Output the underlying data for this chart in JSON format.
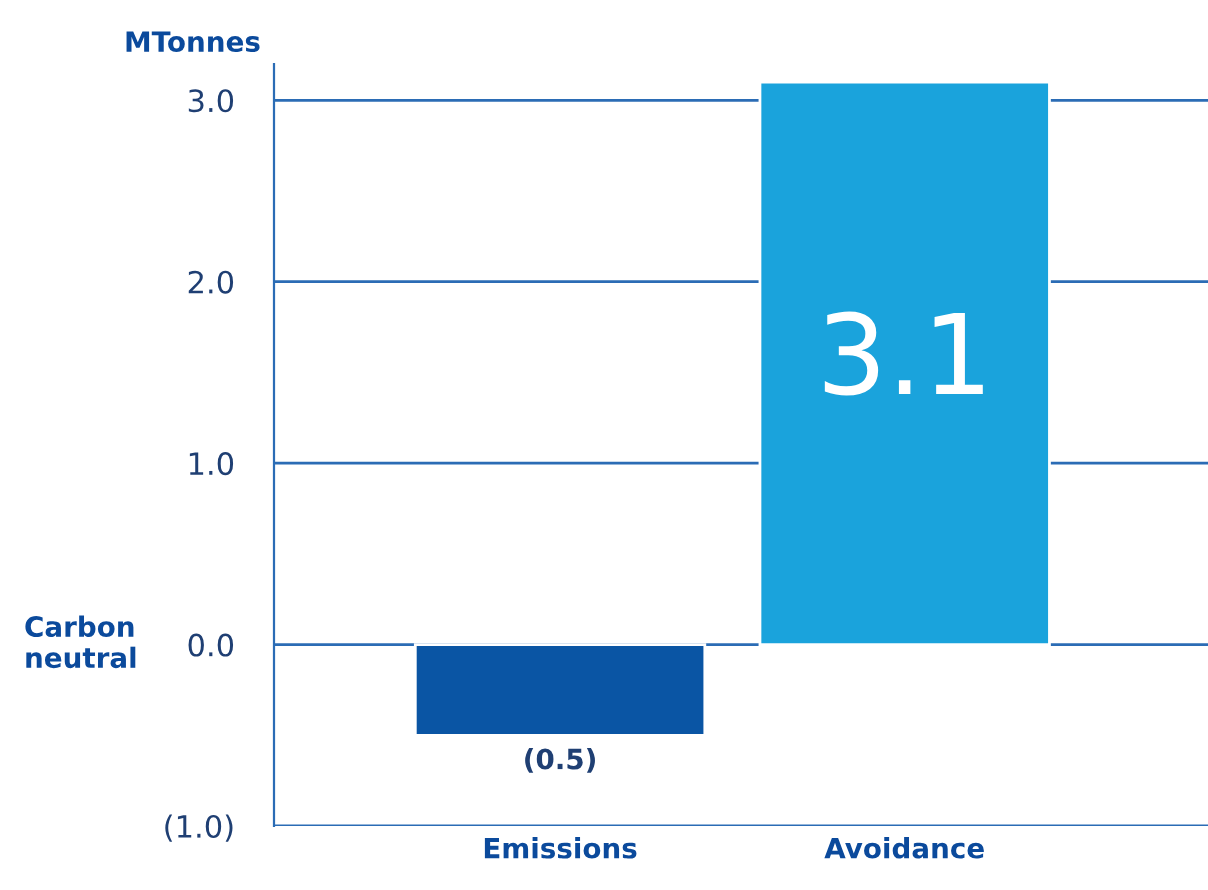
{
  "chart_data": {
    "type": "bar",
    "ylabel": "MTonnes",
    "categories": [
      "Emissions",
      "Avoidance"
    ],
    "values": [
      -0.5,
      3.1
    ],
    "colors": [
      "#0a55a4",
      "#1aa3dc"
    ],
    "value_labels": [
      "(0.5)",
      "3.1"
    ],
    "ylim": [
      -1.0,
      3.2
    ],
    "yticks": [
      {
        "value": -1.0,
        "label": "(1.0)"
      },
      {
        "value": 0.0,
        "label": "0.0"
      },
      {
        "value": 1.0,
        "label": "1.0"
      },
      {
        "value": 2.0,
        "label": "2.0"
      },
      {
        "value": 3.0,
        "label": "3.0"
      }
    ],
    "grid": "y",
    "annotations": [
      "Carbon\nneutral"
    ]
  }
}
